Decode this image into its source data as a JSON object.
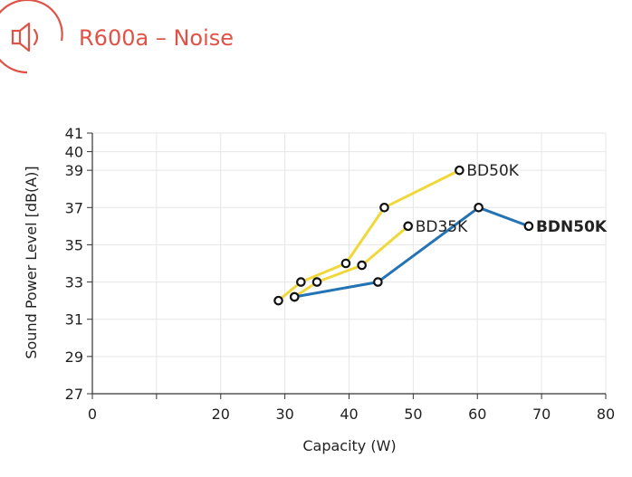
{
  "header": {
    "title": "R600a – Noise",
    "icon": "speaker-icon",
    "accent_color": "#e05246"
  },
  "chart_data": {
    "type": "line",
    "title": "R600a – Noise",
    "xlabel": "Capacity (W)",
    "ylabel": "Sound Power Level [dB(A)]",
    "xlim": [
      0,
      80
    ],
    "ylim": [
      27,
      41
    ],
    "xticks": [
      0,
      10,
      20,
      30,
      40,
      50,
      60,
      70,
      80
    ],
    "xtick_labels": [
      "0",
      "",
      "20",
      "30",
      "40",
      "50",
      "60",
      "70",
      "80"
    ],
    "yticks": [
      27,
      29,
      31,
      33,
      35,
      37,
      39,
      40,
      41
    ],
    "grid": true,
    "series": [
      {
        "name": "BD50K",
        "color": "#f0d83a",
        "label_bold": false,
        "x": [
          29,
          32.5,
          39.5,
          45.5,
          57.2
        ],
        "y": [
          32,
          33,
          34,
          37,
          39
        ]
      },
      {
        "name": "BD35K",
        "color": "#f0d83a",
        "label_bold": false,
        "x": [
          31.5,
          35,
          42,
          49.2
        ],
        "y": [
          32.2,
          33,
          33.9,
          36
        ]
      },
      {
        "name": "BDN50K",
        "color": "#2373b5",
        "label_bold": true,
        "x": [
          31.5,
          44.5,
          60.2,
          68
        ],
        "y": [
          32.2,
          33,
          37,
          36
        ]
      }
    ]
  }
}
